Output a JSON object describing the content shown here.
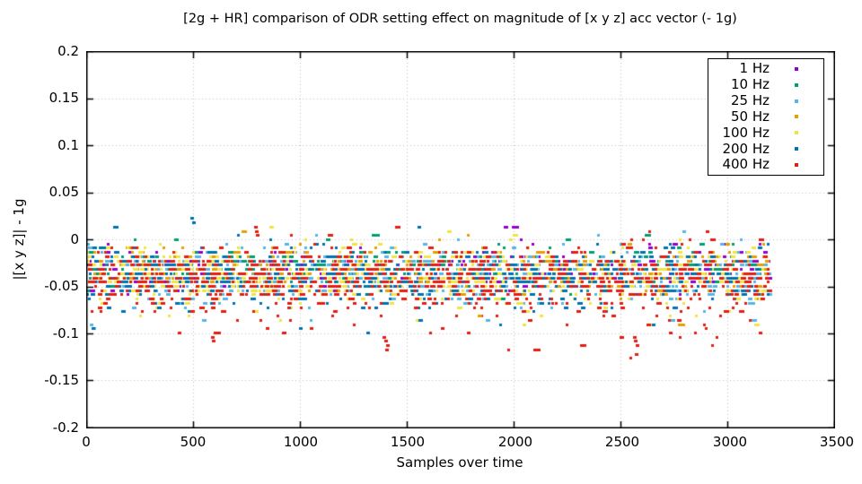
{
  "window": {
    "background": "#ffffff"
  },
  "chart_data": {
    "type": "scatter",
    "title": "[2g + HR] comparison of ODR setting effect on magnitude of [x y z] acc vector (- 1g)",
    "xlabel": "Samples over time",
    "ylabel": "|[x y z]| - 1g",
    "xlim": [
      0,
      3500
    ],
    "ylim": [
      -0.2,
      0.2
    ],
    "xticks": [
      0,
      500,
      1000,
      1500,
      2000,
      2500,
      3000,
      3500
    ],
    "yticks": [
      0.2,
      0.15,
      0.1,
      0.05,
      0,
      -0.05,
      -0.1,
      -0.15,
      -0.2
    ],
    "xtick_labels": [
      "0",
      "500",
      "1000",
      "1500",
      "2000",
      "2500",
      "3000",
      "3500"
    ],
    "ytick_labels": [
      "0.2",
      "0.15",
      "0.1",
      "0.05",
      "0",
      "-0.05",
      "-0.1",
      "-0.15",
      "-0.2"
    ],
    "grid": "dotted",
    "grid_color": "#bdbdbd",
    "axis_color": "#000000",
    "legend_position": "top-right",
    "marker": "square",
    "marker_size_px": 3,
    "x_data_range": [
      0,
      3190
    ],
    "quantize_step": 0.0045,
    "seed": 1337,
    "series": [
      {
        "name": "1 Hz",
        "color": "#9400d3",
        "n": 270,
        "mean": -0.031,
        "sd": 0.011,
        "tail_prob": 0,
        "tail_depth": 0
      },
      {
        "name": "10 Hz",
        "color": "#009e73",
        "n": 310,
        "mean": -0.03,
        "sd": 0.012,
        "tail_prob": 0,
        "tail_depth": 0
      },
      {
        "name": "25 Hz",
        "color": "#56b4e9",
        "n": 430,
        "mean": -0.037,
        "sd": 0.015,
        "tail_prob": 0.01,
        "tail_depth": 0.03
      },
      {
        "name": "50 Hz",
        "color": "#e69f00",
        "n": 310,
        "mean": -0.033,
        "sd": 0.012,
        "tail_prob": 0.01,
        "tail_depth": 0.03
      },
      {
        "name": "100 Hz",
        "color": "#f0e442",
        "n": 500,
        "mean": -0.038,
        "sd": 0.016,
        "tail_prob": 0.015,
        "tail_depth": 0.035
      },
      {
        "name": "200 Hz",
        "color": "#0072b2",
        "n": 520,
        "mean": -0.04,
        "sd": 0.016,
        "tail_prob": 0.015,
        "tail_depth": 0.035
      },
      {
        "name": "400 Hz",
        "color": "#e51e10",
        "n": 760,
        "mean": -0.042,
        "sd": 0.019,
        "tail_prob": 0.05,
        "tail_depth": 0.06
      }
    ],
    "outliers": [
      [
        0,
        1955,
        0.014,
        5
      ],
      [
        0,
        1990,
        0.014,
        5
      ],
      [
        0,
        2010,
        0.014,
        4
      ],
      [
        0,
        2745,
        -0.004,
        6
      ],
      [
        1,
        1338,
        0.005,
        8
      ],
      [
        1,
        1352,
        0.005,
        5
      ],
      [
        1,
        2615,
        0.0045,
        7
      ],
      [
        2,
        2788,
        0.008,
        4
      ],
      [
        2,
        15,
        -0.088,
        4
      ],
      [
        2,
        30,
        -0.093,
        4
      ],
      [
        2,
        540,
        -0.085,
        5
      ],
      [
        3,
        2770,
        -0.089,
        8
      ],
      [
        3,
        1832,
        -0.083,
        5
      ],
      [
        4,
        857,
        0.012,
        5
      ],
      [
        4,
        1688,
        0.009,
        5
      ],
      [
        4,
        2043,
        -0.089,
        4
      ],
      [
        4,
        3125,
        -0.088,
        6
      ],
      [
        4,
        2120,
        -0.082,
        4
      ],
      [
        5,
        489,
        0.0235,
        4
      ],
      [
        5,
        497,
        0.018,
        4
      ],
      [
        5,
        127,
        0.013,
        6
      ],
      [
        5,
        1550,
        0.013,
        4
      ],
      [
        5,
        27,
        -0.095,
        4
      ],
      [
        5,
        1310,
        -0.101,
        4
      ],
      [
        5,
        995,
        -0.094,
        4
      ],
      [
        5,
        2645,
        -0.092,
        4
      ],
      [
        6,
        787,
        0.014,
        4
      ],
      [
        6,
        790,
        0.009,
        4
      ],
      [
        6,
        793,
        0.004,
        4
      ],
      [
        6,
        2900,
        0.011,
        4
      ],
      [
        6,
        428,
        -0.1,
        4
      ],
      [
        6,
        583,
        -0.105,
        4
      ],
      [
        6,
        590,
        -0.11,
        4
      ],
      [
        6,
        598,
        -0.0995,
        4
      ],
      [
        6,
        840,
        -0.094,
        4
      ],
      [
        6,
        1045,
        -0.096,
        4
      ],
      [
        6,
        1388,
        -0.104,
        4
      ],
      [
        6,
        1395,
        -0.109,
        4
      ],
      [
        6,
        1402,
        -0.114,
        4
      ],
      [
        6,
        1400,
        -0.119,
        4
      ],
      [
        6,
        1660,
        -0.094,
        4
      ],
      [
        6,
        1783,
        -0.097,
        4
      ],
      [
        6,
        2312,
        -0.1135,
        7
      ],
      [
        6,
        2558,
        -0.104,
        4
      ],
      [
        6,
        2565,
        -0.109,
        4
      ],
      [
        6,
        2570,
        -0.1135,
        4
      ],
      [
        6,
        2568,
        -0.122,
        4
      ],
      [
        6,
        2728,
        -0.1,
        4
      ],
      [
        6,
        3148,
        -0.098,
        4
      ]
    ]
  }
}
